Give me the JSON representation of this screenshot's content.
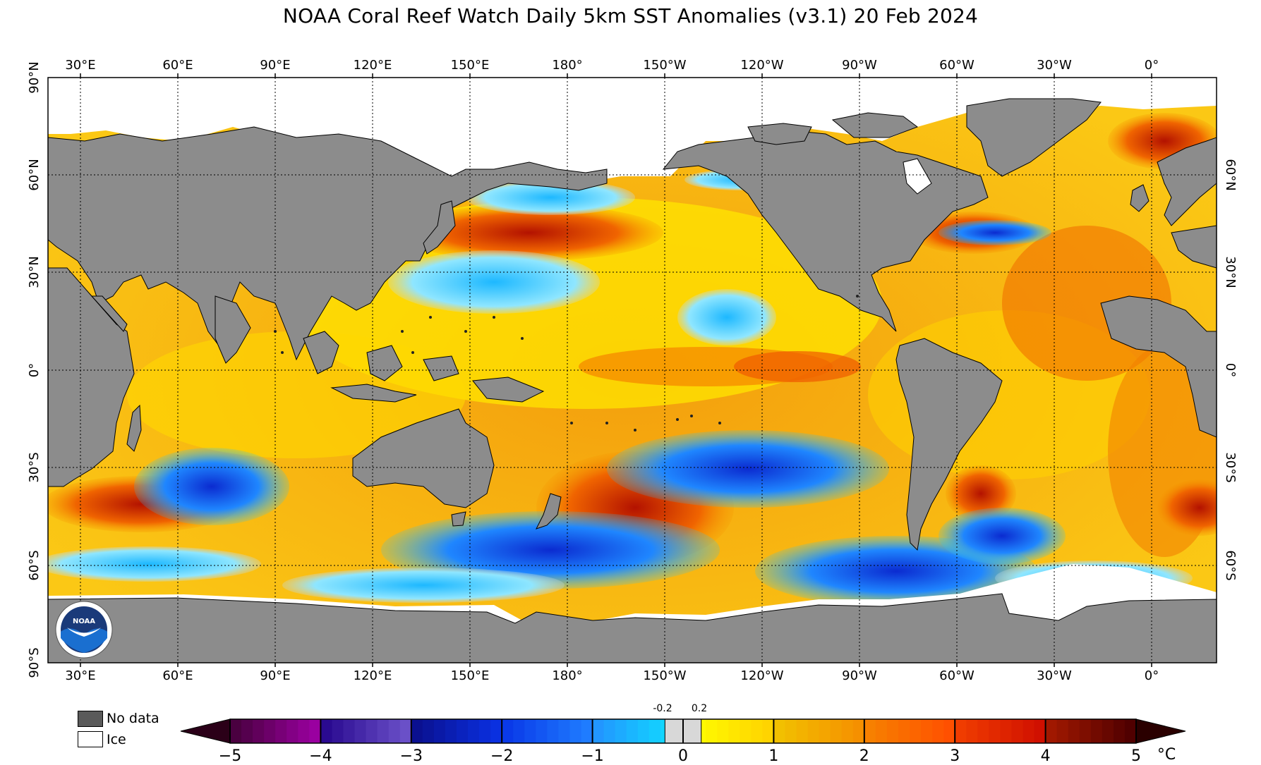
{
  "title": "NOAA Coral Reef Watch Daily 5km SST Anomalies  (v3.1)   20 Feb 2024",
  "map": {
    "ocean_color_note": "SST anomaly field",
    "land_color": "#8c8c8c",
    "ice_color": "#ffffff",
    "top_longitude_labels": [
      "30°E",
      "60°E",
      "90°E",
      "120°E",
      "150°E",
      "180°",
      "150°W",
      "120°W",
      "90°W",
      "60°W",
      "30°W",
      "0°"
    ],
    "bottom_longitude_labels": [
      "30°E",
      "60°E",
      "90°E",
      "120°E",
      "150°E",
      "180°",
      "150°W",
      "120°W",
      "90°W",
      "60°W",
      "30°W",
      "0°"
    ],
    "left_latitude_labels": [
      "90°N",
      "60°N",
      "30°N",
      "0°",
      "30°S",
      "60°S",
      "90°S"
    ],
    "right_latitude_labels": [
      "60°N",
      "30°N",
      "0°",
      "30°S",
      "60°S"
    ],
    "logo_text": "NOAA"
  },
  "legend": {
    "no_data_label": "No data",
    "no_data_color": "#5a5a5a",
    "ice_label": "Ice",
    "ice_color": "#ffffff"
  },
  "colorbar": {
    "tick_labels": [
      "−5",
      "−4",
      "−3",
      "−2",
      "−1",
      "0",
      "1",
      "2",
      "3",
      "4",
      "5"
    ],
    "small_labels": [
      "-0.2",
      "0.2"
    ],
    "unit": "°C",
    "colors": [
      "#2b0010",
      "#4a0045",
      "#8a0090",
      "#2e0f8a",
      "#5a3aa8",
      "#0a1aa8",
      "#0a2fd8",
      "#1565ff",
      "#2a9cff",
      "#1ecfff",
      "#dcdcdc",
      "#fff200",
      "#ffd21a",
      "#f2b300",
      "#f58a00",
      "#ff6a00",
      "#f53a00",
      "#e81a00",
      "#a81a00",
      "#7a0a00",
      "#3a0000"
    ]
  }
}
